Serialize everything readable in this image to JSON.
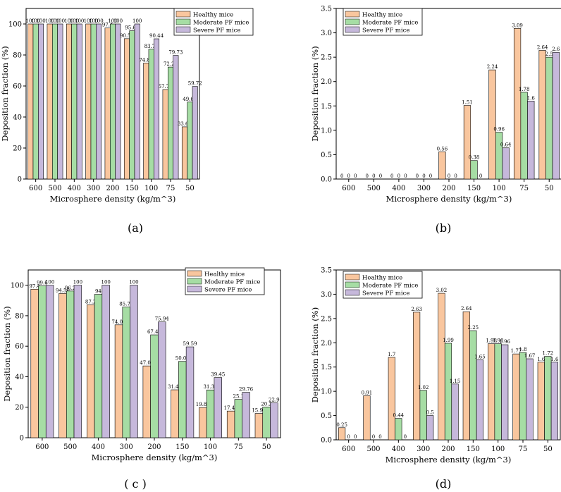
{
  "legend": {
    "series": [
      "Healthy mice",
      "Moderate PF mice",
      "Severe PF mice"
    ]
  },
  "colors": {
    "healthy": "#F9C69E",
    "moderate": "#A6DDA4",
    "severe": "#C6B8DB",
    "stroke": "#000000"
  },
  "chart_data": [
    {
      "type": "bar",
      "caption": "(a)",
      "xlabel": "Microsphere density (kg/m^3)",
      "ylabel": "Deposition fraction (%)",
      "categories": [
        "600",
        "500",
        "400",
        "300",
        "200",
        "150",
        "100",
        "75",
        "50"
      ],
      "ylim": [
        0,
        110
      ],
      "yticks": [
        0,
        20,
        40,
        60,
        80,
        100
      ],
      "legend_position": "top-right",
      "series": [
        {
          "name": "Healthy mice",
          "values": [
            100,
            100,
            100,
            100,
            97.4,
            90.52,
            74.82,
            57.72,
            33.67
          ],
          "labels": [
            "100",
            "100",
            "100",
            "100",
            "97.4",
            "90.52",
            "74.82",
            "57.72",
            "33.67"
          ]
        },
        {
          "name": "Moderate PF mice",
          "values": [
            100,
            100,
            100,
            100,
            100,
            95.62,
            83.72,
            72.22,
            49.64
          ],
          "labels": [
            "100",
            "100",
            "100",
            "100",
            "100",
            "95.62",
            "83.72",
            "72.22",
            "49.64"
          ]
        },
        {
          "name": "Severe PF mice",
          "values": [
            100,
            100,
            100,
            100,
            100,
            100,
            90.44,
            79.73,
            59.72
          ],
          "labels": [
            "100",
            "100",
            "100",
            "100",
            "100",
            "100",
            "90.44",
            "79.73",
            "59.72"
          ]
        }
      ]
    },
    {
      "type": "bar",
      "caption": "(b)",
      "xlabel": "Microsphere density (kg/m^3)",
      "ylabel": "Deposition fraction (%)",
      "categories": [
        "600",
        "500",
        "400",
        "300",
        "200",
        "150",
        "100",
        "75",
        "50"
      ],
      "ylim": [
        0,
        3.5
      ],
      "yticks": [
        0.0,
        0.5,
        1.0,
        1.5,
        2.0,
        2.5,
        3.0,
        3.5
      ],
      "legend_position": "top-left",
      "series": [
        {
          "name": "Healthy mice",
          "values": [
            0,
            0,
            0,
            0,
            0.56,
            1.51,
            2.24,
            3.09,
            2.64
          ],
          "labels": [
            "0",
            "0",
            "0",
            "0",
            "0.56",
            "1.51",
            "2.24",
            "3.09",
            "2.64"
          ]
        },
        {
          "name": "Moderate PF mice",
          "values": [
            0,
            0,
            0,
            0,
            0,
            0.38,
            0.96,
            1.78,
            2.5
          ],
          "labels": [
            "0",
            "0",
            "0",
            "0",
            "0",
            "0.38",
            "0.96",
            "1.78",
            "2.5"
          ]
        },
        {
          "name": "Severe PF mice",
          "values": [
            0,
            0,
            0,
            0,
            0,
            0,
            0.64,
            1.6,
            2.6
          ],
          "labels": [
            "0",
            "0",
            "0",
            "0",
            "0",
            "0",
            "0.64",
            "1.6",
            "2.6"
          ]
        }
      ]
    },
    {
      "type": "bar",
      "caption": "( c )",
      "xlabel": "Microsphere density (kg/m^3)",
      "ylabel": "Deposition fraction (%)",
      "categories": [
        "600",
        "500",
        "400",
        "300",
        "200",
        "150",
        "100",
        "75",
        "50"
      ],
      "ylim": [
        0,
        110
      ],
      "yticks": [
        0,
        20,
        40,
        60,
        80,
        100
      ],
      "legend_position": "top-right",
      "series": [
        {
          "name": "Healthy mice",
          "values": [
            97.4,
            94.56,
            87.2,
            74.04,
            47.08,
            31.42,
            19.82,
            17.49,
            15.92
          ],
          "labels": [
            "97.4",
            "94.56",
            "87.2",
            "74.04",
            "47.08",
            "31.42",
            "19.82",
            "17.49",
            "15.92"
          ]
        },
        {
          "name": "Moderate PF mice",
          "values": [
            99.6,
            96.2,
            94.0,
            85.74,
            67.46,
            50.04,
            31.33,
            25.1,
            20.2
          ],
          "labels": [
            "99.6",
            "96.2",
            "94",
            "85.74",
            "67.46",
            "50.04",
            "31.33",
            "25.1",
            "20.2"
          ]
        },
        {
          "name": "Severe PF mice",
          "values": [
            100,
            100,
            100,
            100,
            75.94,
            59.59,
            39.45,
            29.76,
            22.9
          ],
          "labels": [
            "100",
            "100",
            "100",
            "100",
            "75.94",
            "59.59",
            "39.45",
            "29.76",
            "22.9"
          ]
        }
      ]
    },
    {
      "type": "bar",
      "caption": "(d)",
      "xlabel": "Microsphere density (kg/m^3)",
      "ylabel": "Deposition fraction (%)",
      "categories": [
        "600",
        "500",
        "400",
        "300",
        "200",
        "150",
        "100",
        "75",
        "50"
      ],
      "ylim": [
        0,
        3.5
      ],
      "yticks": [
        0.0,
        0.5,
        1.0,
        1.5,
        2.0,
        2.5,
        3.0,
        3.5
      ],
      "legend_position": "top-left",
      "series": [
        {
          "name": "Healthy mice",
          "values": [
            0.25,
            0.91,
            1.7,
            2.63,
            3.02,
            2.64,
            1.98,
            1.77,
            1.6
          ],
          "labels": [
            "0.25",
            "0.91",
            "1.7",
            "2.63",
            "3.02",
            "2.64",
            "1.98",
            "1.77",
            "1.6"
          ]
        },
        {
          "name": "Moderate PF mice",
          "values": [
            0,
            0,
            0.44,
            1.02,
            1.99,
            2.25,
            1.98,
            1.8,
            1.72
          ],
          "labels": [
            "0",
            "0",
            "0.44",
            "1.02",
            "1.99",
            "2.25",
            "1.98",
            "1.8",
            "1.72"
          ]
        },
        {
          "name": "Severe PF mice",
          "values": [
            0,
            0,
            0,
            0.5,
            1.15,
            1.65,
            1.96,
            1.67,
            1.6
          ],
          "labels": [
            "0",
            "0",
            "0",
            "0.5",
            "1.15",
            "1.65",
            "1.96",
            "1.67",
            "1.6"
          ]
        }
      ]
    }
  ]
}
